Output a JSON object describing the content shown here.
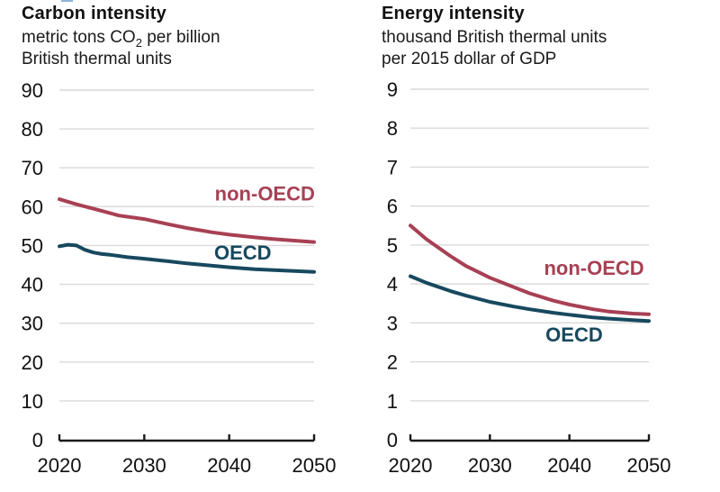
{
  "artifact": {
    "color": "#8db4d9"
  },
  "charts": [
    {
      "title": "Carbon intensity",
      "subtitle": {
        "line1_pre": "metric tons CO",
        "line1_sub": "2",
        "line1_post": " per billion",
        "line2": "British thermal units"
      },
      "chart_data": {
        "type": "line",
        "title": "Carbon intensity",
        "ylabel": "metric tons CO2 per billion British thermal units",
        "xlabel": "",
        "x_range": [
          2020,
          2050
        ],
        "x_ticks": [
          2020,
          2030,
          2040,
          2050
        ],
        "y_range": [
          0,
          90
        ],
        "y_tick_step": 10,
        "grid": true,
        "legend_position": "inline-labels",
        "series": [
          {
            "name": "non-OECD",
            "color": "#a84054",
            "label_anchor": {
              "x": 2044.2,
              "y": 63.4
            },
            "x": [
              2020,
              2022,
              2025,
              2027,
              2030,
              2033,
              2035,
              2038,
              2040,
              2043,
              2045,
              2048,
              2050
            ],
            "values": [
              61.9,
              60.6,
              58.9,
              57.7,
              56.8,
              55.4,
              54.5,
              53.4,
              52.8,
              52.1,
              51.7,
              51.2,
              50.9
            ]
          },
          {
            "name": "OECD",
            "color": "#17495e",
            "label_anchor": {
              "x": 2041.6,
              "y": 48.3
            },
            "x": [
              2020,
              2021,
              2022,
              2023,
              2024,
              2025,
              2026,
              2028,
              2030,
              2033,
              2035,
              2038,
              2040,
              2043,
              2045,
              2048,
              2050
            ],
            "values": [
              49.8,
              50.2,
              50.0,
              48.9,
              48.2,
              47.8,
              47.6,
              47.0,
              46.6,
              45.9,
              45.4,
              44.8,
              44.4,
              43.9,
              43.7,
              43.4,
              43.2
            ]
          }
        ]
      }
    },
    {
      "title": "Energy intensity",
      "subtitle": {
        "line1_pre": "thousand British thermal units",
        "line1_sub": "",
        "line1_post": "",
        "line2": "per 2015 dollar of GDP"
      },
      "chart_data": {
        "type": "line",
        "title": "Energy intensity",
        "ylabel": "thousand British thermal units per 2015 dollar of GDP",
        "xlabel": "",
        "x_range": [
          2020,
          2050
        ],
        "x_ticks": [
          2020,
          2030,
          2040,
          2050
        ],
        "y_range": [
          0,
          9
        ],
        "y_tick_step": 1,
        "grid": true,
        "legend_position": "inline-labels",
        "series": [
          {
            "name": "non-OECD",
            "color": "#a84054",
            "label_anchor": {
              "x": 2043.1,
              "y": 4.42
            },
            "x": [
              2020,
              2022,
              2025,
              2027,
              2030,
              2033,
              2035,
              2038,
              2040,
              2043,
              2045,
              2048,
              2050
            ],
            "values": [
              5.5,
              5.15,
              4.72,
              4.46,
              4.16,
              3.92,
              3.76,
              3.57,
              3.47,
              3.35,
              3.29,
              3.24,
              3.22
            ]
          },
          {
            "name": "OECD",
            "color": "#17495e",
            "label_anchor": {
              "x": 2040.6,
              "y": 2.71
            },
            "x": [
              2020,
              2022,
              2025,
              2027,
              2030,
              2033,
              2035,
              2038,
              2040,
              2043,
              2045,
              2048,
              2050
            ],
            "values": [
              4.2,
              4.03,
              3.82,
              3.7,
              3.54,
              3.42,
              3.35,
              3.26,
              3.21,
              3.14,
              3.11,
              3.07,
              3.05
            ]
          }
        ]
      }
    }
  ]
}
